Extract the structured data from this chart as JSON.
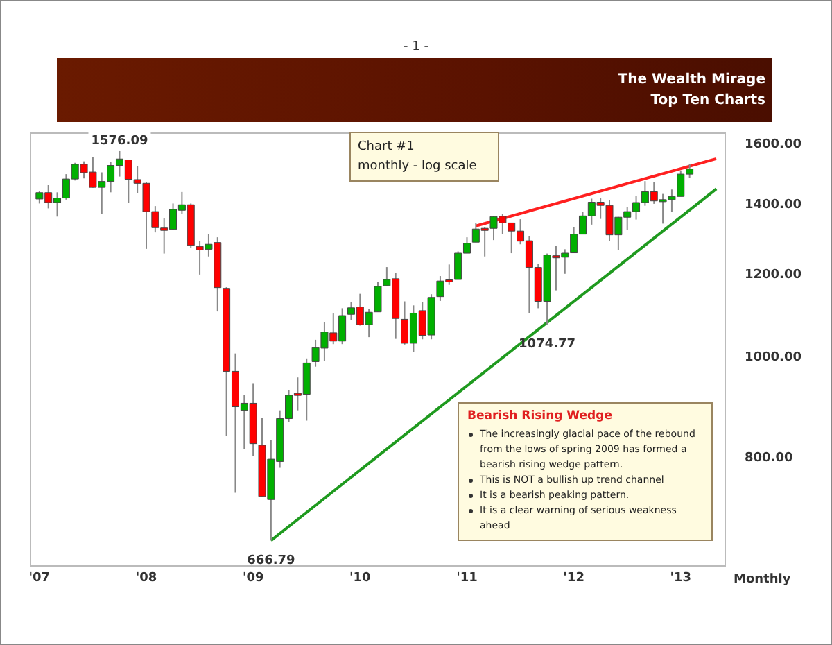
{
  "chart_data": {
    "type": "candlestick",
    "title": "The Wealth Mirage",
    "subtitle": "Top Ten Charts",
    "xlabel": "Monthly",
    "x": [
      "2007-01",
      "2007-02",
      "2007-03",
      "2007-04",
      "2007-05",
      "2007-06",
      "2007-07",
      "2007-08",
      "2007-09",
      "2007-10",
      "2007-11",
      "2007-12",
      "2008-01",
      "2008-02",
      "2008-03",
      "2008-04",
      "2008-05",
      "2008-06",
      "2008-07",
      "2008-08",
      "2008-09",
      "2008-10",
      "2008-11",
      "2008-12",
      "2009-01",
      "2009-02",
      "2009-03",
      "2009-04",
      "2009-05",
      "2009-06",
      "2009-07",
      "2009-08",
      "2009-09",
      "2009-10",
      "2009-11",
      "2009-12",
      "2010-01",
      "2010-02",
      "2010-03",
      "2010-04",
      "2010-05",
      "2010-06",
      "2010-07",
      "2010-08",
      "2010-09",
      "2010-10",
      "2010-11",
      "2010-12",
      "2011-01",
      "2011-02",
      "2011-03",
      "2011-04",
      "2011-05",
      "2011-06",
      "2011-07",
      "2011-08",
      "2011-09",
      "2011-10",
      "2011-11",
      "2011-12",
      "2012-01",
      "2012-02",
      "2012-03",
      "2012-04",
      "2012-05",
      "2012-06",
      "2012-07",
      "2012-08",
      "2012-09",
      "2012-10",
      "2012-11",
      "2012-12",
      "2013-01",
      "2013-02"
    ],
    "ohlc": [
      [
        1418,
        1442,
        1404,
        1438
      ],
      [
        1438,
        1462,
        1389,
        1407
      ],
      [
        1407,
        1439,
        1364,
        1421
      ],
      [
        1421,
        1498,
        1416,
        1482
      ],
      [
        1482,
        1536,
        1477,
        1531
      ],
      [
        1531,
        1541,
        1484,
        1503
      ],
      [
        1505,
        1556,
        1454,
        1455
      ],
      [
        1455,
        1504,
        1371,
        1474
      ],
      [
        1474,
        1539,
        1439,
        1527
      ],
      [
        1527,
        1576.09,
        1490,
        1549
      ],
      [
        1546,
        1546,
        1406,
        1481
      ],
      [
        1480,
        1524,
        1436,
        1468
      ],
      [
        1468,
        1472,
        1270,
        1379
      ],
      [
        1379,
        1396,
        1317,
        1331
      ],
      [
        1330,
        1360,
        1257,
        1323
      ],
      [
        1326,
        1404,
        1324,
        1386
      ],
      [
        1383,
        1440,
        1373,
        1400
      ],
      [
        1400,
        1404,
        1272,
        1280
      ],
      [
        1277,
        1292,
        1200,
        1267
      ],
      [
        1269,
        1313,
        1249,
        1283
      ],
      [
        1288,
        1303,
        1106,
        1166
      ],
      [
        1164,
        1167,
        840,
        969
      ],
      [
        969,
        1008,
        741,
        896
      ],
      [
        889,
        919,
        816,
        903
      ],
      [
        903,
        944,
        804,
        826
      ],
      [
        823,
        875,
        735,
        735
      ],
      [
        730,
        833,
        666.79,
        798
      ],
      [
        794,
        889,
        783,
        873
      ],
      [
        873,
        930,
        866,
        919
      ],
      [
        923,
        956,
        889,
        919
      ],
      [
        921,
        997,
        869,
        987
      ],
      [
        990,
        1039,
        979,
        1021
      ],
      [
        1020,
        1080,
        992,
        1057
      ],
      [
        1055,
        1101,
        1029,
        1036
      ],
      [
        1036,
        1114,
        1029,
        1096
      ],
      [
        1099,
        1130,
        1086,
        1115
      ],
      [
        1117,
        1150,
        1072,
        1074
      ],
      [
        1074,
        1112,
        1045,
        1104
      ],
      [
        1105,
        1180,
        1105,
        1169
      ],
      [
        1171,
        1220,
        1171,
        1187
      ],
      [
        1189,
        1205,
        1041,
        1089
      ],
      [
        1087,
        1131,
        1028,
        1031
      ],
      [
        1031,
        1121,
        1011,
        1102
      ],
      [
        1108,
        1129,
        1040,
        1049
      ],
      [
        1050,
        1149,
        1040,
        1141
      ],
      [
        1143,
        1196,
        1132,
        1183
      ],
      [
        1186,
        1227,
        1173,
        1181
      ],
      [
        1187,
        1263,
        1187,
        1258
      ],
      [
        1258,
        1303,
        1258,
        1286
      ],
      [
        1289,
        1344,
        1289,
        1327
      ],
      [
        1329,
        1332,
        1249,
        1326
      ],
      [
        1329,
        1366,
        1295,
        1364
      ],
      [
        1365,
        1371,
        1312,
        1345
      ],
      [
        1345,
        1345,
        1258,
        1321
      ],
      [
        1321,
        1356,
        1283,
        1292
      ],
      [
        1293,
        1307,
        1102,
        1219
      ],
      [
        1219,
        1229,
        1114,
        1131
      ],
      [
        1131,
        1257,
        1074.77,
        1253
      ],
      [
        1251,
        1278,
        1159,
        1247
      ],
      [
        1247,
        1269,
        1202,
        1258
      ],
      [
        1259,
        1333,
        1259,
        1312
      ],
      [
        1312,
        1378,
        1312,
        1366
      ],
      [
        1366,
        1419,
        1340,
        1408
      ],
      [
        1408,
        1422,
        1357,
        1398
      ],
      [
        1398,
        1415,
        1292,
        1310
      ],
      [
        1310,
        1363,
        1267,
        1362
      ],
      [
        1362,
        1392,
        1325,
        1379
      ],
      [
        1379,
        1427,
        1355,
        1407
      ],
      [
        1407,
        1475,
        1397,
        1441
      ],
      [
        1441,
        1471,
        1403,
        1412
      ],
      [
        1412,
        1434,
        1343,
        1416
      ],
      [
        1416,
        1448,
        1378,
        1426
      ],
      [
        1426,
        1510,
        1426,
        1498
      ],
      [
        1498,
        1531,
        1485,
        1515
      ]
    ],
    "series": [
      {
        "type": "line",
        "color": "#ff2020",
        "x": [
          "2011-02",
          "2013-05"
        ],
        "values": [
          1336,
          1550
        ]
      },
      {
        "type": "line",
        "color": "#1f9a1f",
        "x": [
          "2009-03",
          "2013-05"
        ],
        "values": [
          666.79,
          1450
        ]
      }
    ],
    "log": "y",
    "ylim": [
      630,
      1640
    ],
    "yticks": [
      {
        "value": 800,
        "label": "800.00"
      },
      {
        "value": 1000,
        "label": "1000.00"
      },
      {
        "value": 1200,
        "label": "1200.00"
      },
      {
        "value": 1400,
        "label": "1400.00"
      },
      {
        "value": 1600,
        "label": "1600.00"
      }
    ],
    "xlim": [
      "2006-12",
      "2013-06"
    ],
    "xticks": [
      {
        "value": "2007-01",
        "label": "'07"
      },
      {
        "value": "2008-01",
        "label": "'08"
      },
      {
        "value": "2009-01",
        "label": "'09"
      },
      {
        "value": "2010-01",
        "label": "'10"
      },
      {
        "value": "2011-01",
        "label": "'11"
      },
      {
        "value": "2012-01",
        "label": "'12"
      },
      {
        "value": "2013-01",
        "label": "'13"
      }
    ],
    "annotations": [
      "- 1 -",
      "Chart #1",
      "monthly - log scale",
      "Bearish Rising Wedge",
      "The increasingly glacial pace of the rebound from the lows of spring 2009 has formed a bearish rising wedge pattern.",
      "This is NOT a bullish up trend channel",
      "It is a bearish peaking pattern.",
      "It is a clear warning of serious weakness ahead",
      {
        "text": "1576.09",
        "x": "2007-10",
        "y": 1576.09
      },
      {
        "text": "666.79",
        "x": "2009-03",
        "y": 666.79
      },
      {
        "text": "1074.77",
        "x": "2011-10",
        "y": 1074.77
      }
    ]
  }
}
